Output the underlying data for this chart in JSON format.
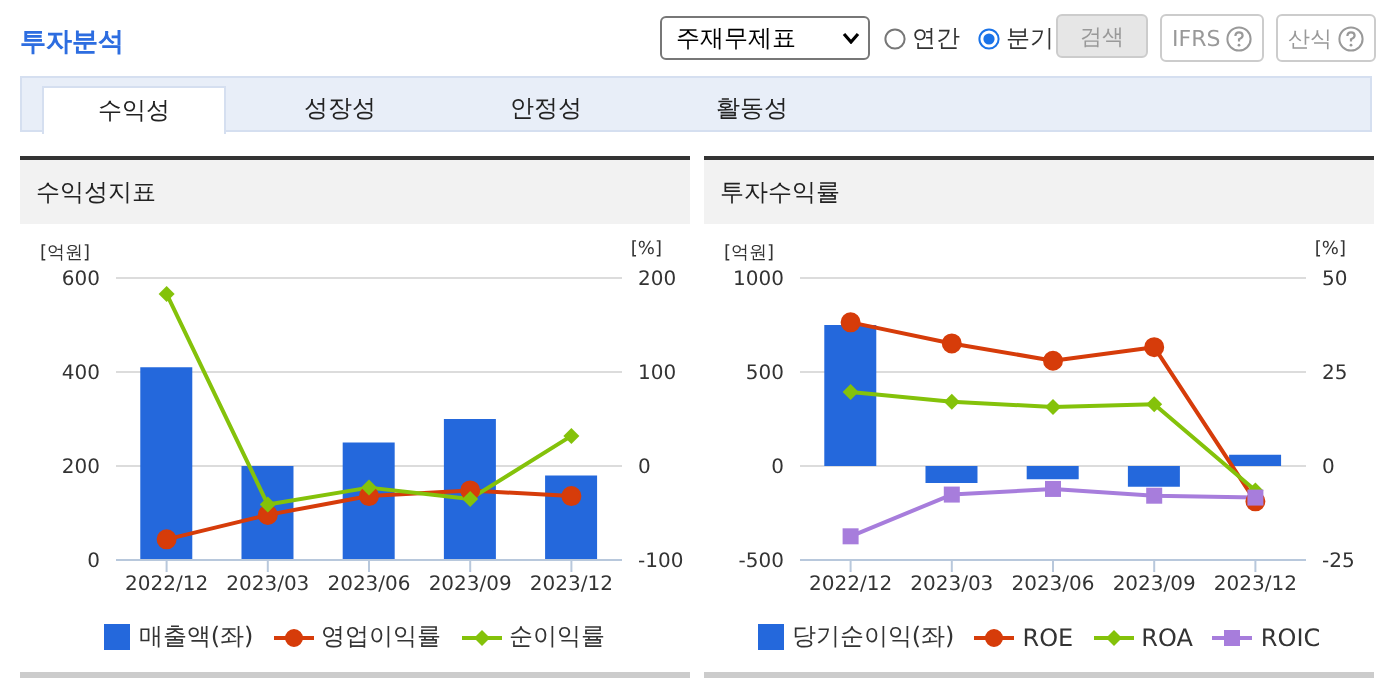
{
  "chart_data": [
    {
      "type": "bar",
      "title": "수익성지표",
      "ylabel": "[억원]",
      "y2label": "[%]",
      "annotations": [
        "투자분석",
        "주재무제표",
        "연간",
        "분기",
        "검색",
        "IFRS",
        "산식",
        "수익성",
        "성장성",
        "안정성",
        "활동성"
      ],
      "categories": [
        "2022/12",
        "2023/03",
        "2023/06",
        "2023/09",
        "2023/12"
      ],
      "series": [
        {
          "name": "매출액(좌)",
          "color": "#2468dc",
          "values": [
            410,
            200,
            250,
            300,
            180
          ]
        },
        {
          "name": "영업이익률",
          "type": "line",
          "axis": "y2",
          "marker": "circle",
          "color": "#d63c0a",
          "values": [
            -78,
            -52,
            -32,
            -26,
            -32
          ]
        },
        {
          "name": "순이익률",
          "type": "line",
          "axis": "y2",
          "marker": "diamond",
          "color": "#84c20a",
          "values": [
            183,
            -41,
            -23,
            -35,
            32
          ]
        }
      ],
      "ylim": [
        0,
        600
      ],
      "yticks": [
        0,
        200,
        400,
        600
      ],
      "y2lim": [
        -100,
        200
      ],
      "y2ticks": [
        -100,
        0,
        100,
        200
      ],
      "grid": "y",
      "legend": "bottom"
    },
    {
      "type": "bar",
      "title": "투자수익률",
      "ylabel": "[억원]",
      "y2label": "[%]",
      "categories": [
        "2022/12",
        "2023/03",
        "2023/06",
        "2023/09",
        "2023/12"
      ],
      "series": [
        {
          "name": "당기순이익(좌)",
          "color": "#2468dc",
          "values": [
            750,
            -90,
            -70,
            -110,
            60
          ]
        },
        {
          "name": "ROE",
          "type": "line",
          "axis": "y2",
          "marker": "circle",
          "color": "#d63c0a",
          "values": [
            38.2,
            32.6,
            28,
            31.6,
            -9.4
          ]
        },
        {
          "name": "ROA",
          "type": "line",
          "axis": "y2",
          "marker": "diamond",
          "color": "#84c20a",
          "values": [
            19.7,
            17.1,
            15.7,
            16.4,
            -6.5
          ]
        },
        {
          "name": "ROIC",
          "type": "line",
          "axis": "y2",
          "marker": "square",
          "color": "#a77ddc",
          "values": [
            -18.7,
            -7.6,
            -6.1,
            -7.9,
            -8.4
          ]
        }
      ],
      "ylim": [
        -500,
        1000
      ],
      "yticks": [
        -500,
        0,
        500,
        1000
      ],
      "y2lim": [
        -25,
        50
      ],
      "y2ticks": [
        -25,
        0,
        25,
        50
      ],
      "grid": "y",
      "legend": "bottom"
    }
  ]
}
